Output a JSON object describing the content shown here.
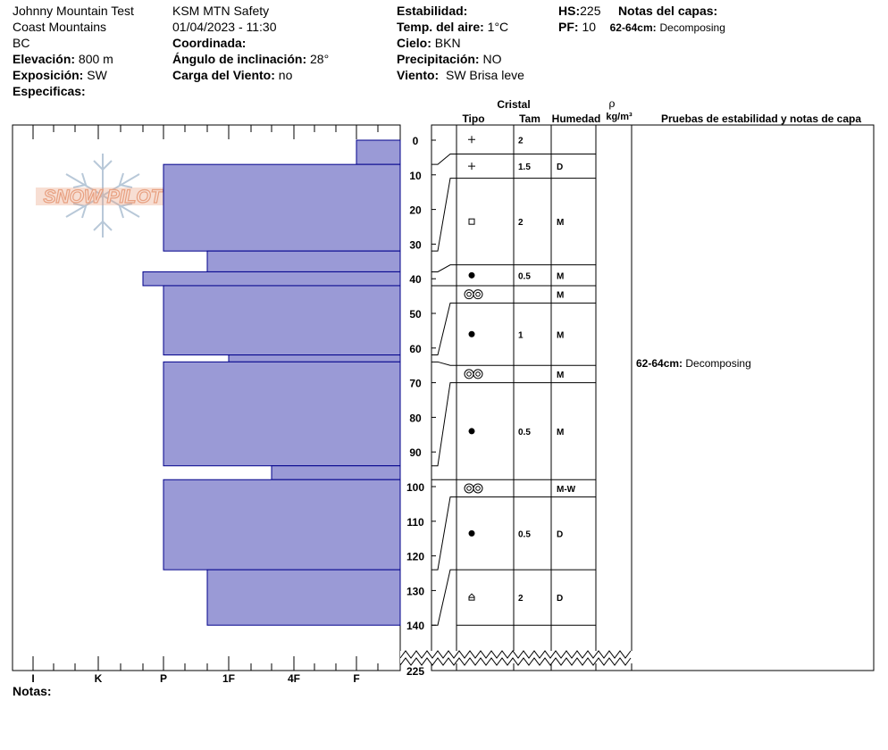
{
  "header": {
    "col1": {
      "line1": "Johnny Mountain Test",
      "line2": "Coast Mountains",
      "line3": "BC",
      "elev_label": "Elevación:",
      "elev_value": "800 m",
      "expo_label": "Exposición:",
      "expo_value": "SW",
      "especificas_label": "Especificas:"
    },
    "col2": {
      "line1": "KSM MTN Safety",
      "line2": "01/04/2023 - 11:30",
      "coord_label": "Coordinada:",
      "angulo_label": "Ángulo de inclinación:",
      "angulo_value": "28°",
      "carga_label": "Carga del Viento:",
      "carga_value": "no"
    },
    "col3": {
      "estab_label": "Estabilidad:",
      "temp_label": "Temp. del aire:",
      "temp_value": "1°C",
      "cielo_label": "Cielo:",
      "cielo_value": "BKN",
      "precip_label": "Precipitación:",
      "precip_value": "NO",
      "viento_label": "Viento:",
      "viento_value": "SW Brisa leve"
    },
    "col4": {
      "hs_label": "HS:",
      "hs_value": "225",
      "pf_label": "PF:",
      "pf_value": "10",
      "notas_capas_label": "Notas del capas:",
      "note_depth": "62-64cm:",
      "note_text": "Decomposing"
    }
  },
  "logo_text": "SNOW PILOT",
  "column_headers": {
    "cristal": "Cristal",
    "tipo": "Tipo",
    "tam": "Tam",
    "humedad": "Humedad",
    "rho": "ρ",
    "density_unit": "kg/m³",
    "pruebas": "Pruebas de estabilidad y notas de capa"
  },
  "hardness_labels": [
    "I",
    "K",
    "P",
    "1F",
    "4F",
    "F"
  ],
  "depth_ticks": [
    0,
    10,
    20,
    30,
    40,
    50,
    60,
    70,
    80,
    90,
    100,
    110,
    120,
    130,
    140
  ],
  "total_depth_label": "225",
  "layer_note": {
    "depth": "62-64cm:",
    "text": "Decomposing",
    "at_depth": 64
  },
  "notas_label": "Notas:",
  "colors": {
    "fill": "#9a9ad6",
    "stroke": "#00008b",
    "logo": "#e8a080",
    "flake": "#b8c8d8"
  },
  "chart_data": {
    "type": "snow-profile",
    "hardness_scale": [
      "F",
      "4F",
      "1F",
      "P",
      "K",
      "I"
    ],
    "layers": [
      {
        "top": 0,
        "bottom": 7,
        "hardness": "F",
        "crystal": "new-snow-icon",
        "size": "2",
        "moisture": ""
      },
      {
        "top": 7,
        "bottom": 32,
        "hardness": "P",
        "crystal": "new-snow-icon",
        "size": "1.5",
        "moisture": "D"
      },
      {
        "top": 32,
        "bottom": 38,
        "hardness": "1F+",
        "crystal": "faceted-icon",
        "size": "2",
        "moisture": "M"
      },
      {
        "top": 38,
        "bottom": 42,
        "hardness": "P+",
        "crystal": "rounded-icon",
        "size": "0.5",
        "moisture": "M"
      },
      {
        "top": 42,
        "bottom": 62,
        "hardness": "P",
        "crystal": "melt-form-icon",
        "size": "",
        "moisture": "M"
      },
      {
        "top": 62,
        "bottom": 64,
        "hardness": "1F",
        "crystal": "rounded-icon",
        "size": "1",
        "moisture": "M"
      },
      {
        "top": 64,
        "bottom": 94,
        "hardness": "P",
        "crystal": "melt-form-icon",
        "size": "",
        "moisture": "M"
      },
      {
        "top": 94,
        "bottom": 98,
        "hardness": "4F",
        "crystal": "rounded-icon",
        "size": "0.5",
        "moisture": "M"
      },
      {
        "top": 98,
        "bottom": 124,
        "hardness": "P",
        "crystal": "melt-form-icon",
        "size": "",
        "moisture": "M-W"
      },
      {
        "top": 124,
        "bottom": 140,
        "hardness": "1F+",
        "crystal": "rounded-icon",
        "size": "0.5",
        "moisture": "D"
      }
    ],
    "crystal_rows": [
      {
        "top": 0,
        "bottom": 4,
        "symbol": "new-snow-icon",
        "size": "2",
        "moisture": ""
      },
      {
        "top": 4,
        "bottom": 11,
        "symbol": "new-snow-icon",
        "size": "1.5",
        "moisture": "D"
      },
      {
        "top": 11,
        "bottom": 36,
        "symbol": "faceted-icon",
        "size": "2",
        "moisture": "M"
      },
      {
        "top": 36,
        "bottom": 42,
        "symbol": "rounded-icon",
        "size": "0.5",
        "moisture": "M"
      },
      {
        "top": 42,
        "bottom": 47,
        "symbol": "melt-form-icon",
        "size": "",
        "moisture": "M"
      },
      {
        "top": 47,
        "bottom": 65,
        "symbol": "rounded-icon",
        "size": "1",
        "moisture": "M"
      },
      {
        "top": 65,
        "bottom": 70,
        "symbol": "melt-form-icon",
        "size": "",
        "moisture": "M"
      },
      {
        "top": 70,
        "bottom": 98,
        "symbol": "rounded-icon",
        "size": "0.5",
        "moisture": "M"
      },
      {
        "top": 98,
        "bottom": 103,
        "symbol": "melt-form-icon",
        "size": "",
        "moisture": "M-W"
      },
      {
        "top": 103,
        "bottom": 124,
        "symbol": "rounded-icon",
        "size": "0.5",
        "moisture": "D"
      },
      {
        "top": 124,
        "bottom": 140,
        "symbol": "depth-hoar-icon",
        "size": "2",
        "moisture": "D"
      }
    ]
  }
}
